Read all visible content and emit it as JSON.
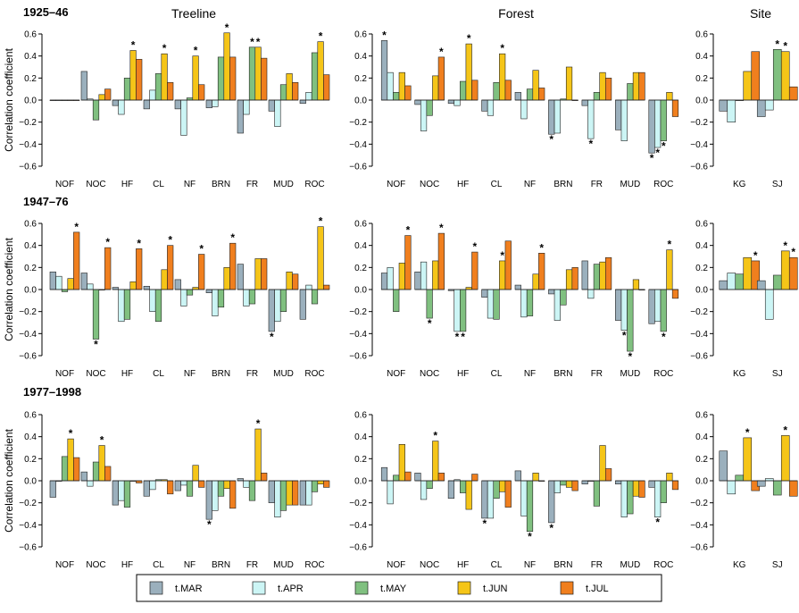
{
  "chart_data": {
    "type": "bar",
    "ylabel": "Correlation coefficient",
    "ylim": [
      -0.6,
      0.6
    ],
    "yticks": [
      0.6,
      0.4,
      0.2,
      0.0,
      -0.2,
      -0.4,
      -0.6
    ],
    "ytick_labels": [
      "0.6",
      "0.4",
      "0.2",
      "0.0",
      "−0.2",
      "−0.4",
      "−0.6"
    ],
    "series_names": [
      "t.MAR",
      "t.APR",
      "t.MAY",
      "t.JUN",
      "t.JUL"
    ],
    "series_colors": [
      "#9bb0bd",
      "#ccf5f5",
      "#80c080",
      "#f5c518",
      "#f07f1e"
    ],
    "legend_position": "bottom-center",
    "periods": [
      "1925–46",
      "1947–76",
      "1977–1998"
    ],
    "regions": [
      {
        "title": "Treeline",
        "categories": [
          "NOF",
          "NOC",
          "HF",
          "CL",
          "NF",
          "BRN",
          "FR",
          "MUD",
          "ROC"
        ]
      },
      {
        "title": "Forest",
        "categories": [
          "NOF",
          "NOC",
          "HF",
          "CL",
          "NF",
          "BRN",
          "FR",
          "MUD",
          "ROC"
        ]
      },
      {
        "title": "Site",
        "categories": [
          "KG",
          "SJ"
        ]
      }
    ],
    "panels": [
      {
        "row": 0,
        "region": 0,
        "values": [
          [
            0,
            0,
            0,
            0,
            0
          ],
          [
            0.26,
            0.01,
            -0.18,
            0.05,
            0.1
          ],
          [
            -0.05,
            -0.13,
            0.2,
            0.45,
            0.37
          ],
          [
            -0.08,
            0.09,
            0.24,
            0.42,
            0.16
          ],
          [
            -0.08,
            -0.32,
            0.02,
            0.4,
            0.14
          ],
          [
            -0.07,
            -0.06,
            0.39,
            0.61,
            0.39
          ],
          [
            -0.3,
            -0.13,
            0.48,
            0.48,
            0.38
          ],
          [
            -0.1,
            -0.24,
            0.14,
            0.24,
            0.16
          ],
          [
            -0.03,
            0.07,
            0.43,
            0.53,
            0.23
          ]
        ],
        "stars": [
          [],
          [],
          [
            3
          ],
          [
            3
          ],
          [
            3
          ],
          [
            3
          ],
          [
            2,
            3
          ],
          [],
          [
            3
          ]
        ]
      },
      {
        "row": 0,
        "region": 1,
        "values": [
          [
            0.54,
            0.25,
            0.07,
            0.25,
            0.13
          ],
          [
            -0.04,
            -0.28,
            -0.14,
            0.22,
            0.39
          ],
          [
            -0.03,
            -0.05,
            0.17,
            0.51,
            0.18
          ],
          [
            -0.1,
            -0.14,
            0.16,
            0.42,
            0.18
          ],
          [
            0.07,
            -0.17,
            0.1,
            0.27,
            0.11
          ],
          [
            -0.31,
            -0.3,
            0.01,
            0.3,
            0.0
          ],
          [
            -0.05,
            -0.35,
            0.07,
            0.25,
            0.2
          ],
          [
            -0.27,
            -0.37,
            0.15,
            0.25,
            0.25
          ],
          [
            -0.48,
            -0.43,
            -0.37,
            0.07,
            -0.15
          ]
        ],
        "stars": [
          [
            0
          ],
          [
            4
          ],
          [
            3
          ],
          [
            3
          ],
          [],
          [
            0
          ],
          [
            1
          ],
          [],
          [
            0,
            1,
            2
          ]
        ]
      },
      {
        "row": 0,
        "region": 2,
        "values": [
          [
            -0.1,
            -0.2,
            0.0,
            0.26,
            0.44
          ],
          [
            -0.15,
            -0.09,
            0.46,
            0.44,
            0.12
          ]
        ],
        "stars": [
          [],
          [
            2,
            3
          ]
        ]
      },
      {
        "row": 1,
        "region": 0,
        "values": [
          [
            0.16,
            0.12,
            -0.02,
            0.1,
            0.52
          ],
          [
            0.15,
            0.05,
            -0.45,
            0.0,
            0.38
          ],
          [
            0.02,
            -0.29,
            -0.27,
            0.07,
            0.37
          ],
          [
            0.03,
            -0.2,
            -0.29,
            0.18,
            0.4
          ],
          [
            0.09,
            -0.15,
            -0.05,
            0.02,
            0.32
          ],
          [
            -0.03,
            -0.24,
            -0.16,
            0.2,
            0.42
          ],
          [
            0.23,
            -0.15,
            -0.13,
            0.28,
            0.28
          ],
          [
            -0.38,
            -0.29,
            -0.2,
            0.16,
            0.14
          ],
          [
            -0.27,
            0.04,
            -0.13,
            0.57,
            0.04
          ]
        ],
        "stars": [
          [
            4
          ],
          [
            2,
            4
          ],
          [
            4
          ],
          [
            4
          ],
          [
            4
          ],
          [
            4
          ],
          [],
          [
            0
          ],
          [
            3
          ]
        ]
      },
      {
        "row": 1,
        "region": 1,
        "values": [
          [
            0.15,
            0.2,
            -0.2,
            0.24,
            0.49
          ],
          [
            0.16,
            0.25,
            -0.26,
            0.26,
            0.51
          ],
          [
            -0.01,
            -0.38,
            -0.38,
            0.02,
            0.34
          ],
          [
            -0.07,
            -0.26,
            -0.27,
            0.26,
            0.44
          ],
          [
            0.04,
            -0.25,
            -0.24,
            0.14,
            0.33
          ],
          [
            -0.04,
            -0.28,
            -0.14,
            0.18,
            0.2
          ],
          [
            0.26,
            -0.08,
            0.23,
            0.25,
            0.29
          ],
          [
            -0.28,
            -0.37,
            -0.56,
            0.09,
            0.0
          ],
          [
            -0.31,
            -0.29,
            -0.38,
            0.36,
            -0.08
          ]
        ],
        "stars": [
          [
            4
          ],
          [
            2,
            4
          ],
          [
            1,
            2,
            4
          ],
          [
            3
          ],
          [
            4
          ],
          [],
          [],
          [
            1,
            2
          ],
          [
            2,
            3
          ]
        ]
      },
      {
        "row": 1,
        "region": 2,
        "values": [
          [
            0.08,
            0.15,
            0.14,
            0.29,
            0.26
          ],
          [
            0.08,
            -0.27,
            0.13,
            0.35,
            0.29
          ]
        ],
        "stars": [
          [
            4
          ],
          [
            3,
            4
          ]
        ]
      },
      {
        "row": 2,
        "region": 0,
        "values": [
          [
            -0.15,
            0.0,
            0.22,
            0.38,
            0.21
          ],
          [
            0.08,
            -0.05,
            0.17,
            0.32,
            0.13
          ],
          [
            -0.22,
            -0.18,
            -0.24,
            0.0,
            -0.02
          ],
          [
            -0.14,
            -0.08,
            0.01,
            0.01,
            -0.12
          ],
          [
            -0.09,
            -0.04,
            -0.14,
            0.14,
            -0.06
          ],
          [
            -0.35,
            -0.27,
            -0.14,
            -0.07,
            -0.25
          ],
          [
            0.02,
            -0.06,
            -0.18,
            0.47,
            0.07
          ],
          [
            -0.2,
            -0.33,
            -0.27,
            -0.22,
            -0.22
          ],
          [
            -0.22,
            -0.22,
            -0.1,
            -0.03,
            -0.06
          ]
        ],
        "stars": [
          [
            3
          ],
          [
            3
          ],
          [],
          [],
          [],
          [
            0
          ],
          [
            3
          ],
          [],
          []
        ]
      },
      {
        "row": 2,
        "region": 1,
        "values": [
          [
            0.12,
            -0.21,
            0.05,
            0.33,
            0.08
          ],
          [
            0.07,
            -0.17,
            -0.07,
            0.36,
            0.07
          ],
          [
            -0.16,
            0.01,
            -0.11,
            -0.26,
            0.06
          ],
          [
            -0.34,
            -0.34,
            -0.16,
            -0.1,
            -0.24
          ],
          [
            0.09,
            -0.32,
            -0.46,
            0.07,
            0.0
          ],
          [
            -0.38,
            -0.11,
            -0.04,
            -0.06,
            -0.09
          ],
          [
            -0.03,
            0.0,
            -0.23,
            0.32,
            0.11
          ],
          [
            -0.03,
            -0.33,
            -0.3,
            -0.14,
            -0.15
          ],
          [
            -0.06,
            -0.33,
            -0.2,
            0.07,
            -0.08
          ]
        ],
        "stars": [
          [],
          [
            3
          ],
          [],
          [
            0
          ],
          [
            2
          ],
          [
            0
          ],
          [],
          [],
          [
            1
          ]
        ]
      },
      {
        "row": 2,
        "region": 2,
        "values": [
          [
            0.27,
            -0.12,
            0.05,
            0.39,
            -0.09
          ],
          [
            -0.05,
            0.02,
            -0.13,
            0.41,
            -0.14
          ]
        ],
        "stars": [
          [
            3
          ],
          [
            3
          ]
        ]
      }
    ]
  }
}
